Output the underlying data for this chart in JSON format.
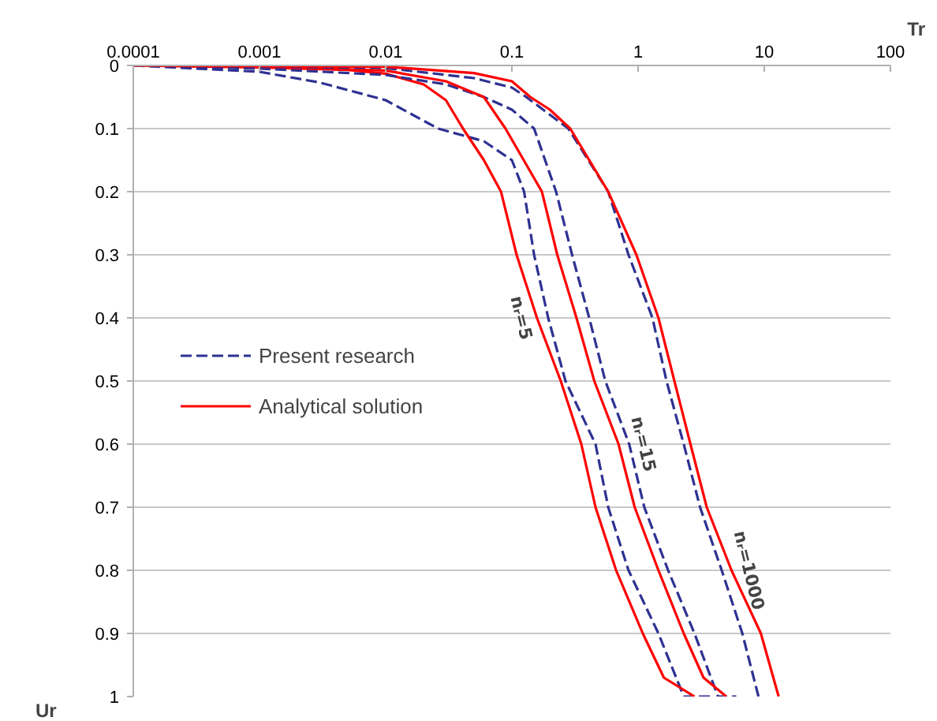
{
  "chart_data": {
    "type": "line",
    "xlabel": "Tr",
    "ylabel": "Ur",
    "log": "x",
    "xlim": [
      0.0001,
      100
    ],
    "xticks": [
      0.0001,
      0.001,
      0.01,
      0.1,
      1,
      10,
      100
    ],
    "ylim": [
      1,
      0
    ],
    "yticks": [
      0,
      0.1,
      0.2,
      0.3,
      0.4,
      0.5,
      0.6,
      0.7,
      0.8,
      0.9,
      1
    ],
    "grid": "y",
    "legend": "center left",
    "marker": "none",
    "series": [
      {
        "name": "Present research",
        "color": "#2e3192",
        "line_style": "dashed",
        "x": [
          0.0001,
          0.001,
          0.003,
          0.01,
          0.026,
          0.06,
          0.1,
          0.125,
          0.15,
          0.194,
          0.266,
          0.46,
          0.58,
          0.84,
          1.45,
          2.3,
          4.0
        ],
        "values": [
          0,
          0.01,
          0.027,
          0.055,
          0.1,
          0.12,
          0.15,
          0.2,
          0.3,
          0.4,
          0.5,
          0.6,
          0.7,
          0.8,
          0.9,
          1,
          1
        ]
      },
      {
        "name": "Analytical solution",
        "color": "#ff0000",
        "line_style": "solid",
        "x": [
          0.0001,
          0.001,
          0.005,
          0.01,
          0.02,
          0.03,
          0.041,
          0.06,
          0.082,
          0.109,
          0.158,
          0.244,
          0.355,
          0.46,
          0.67,
          1.09,
          1.6,
          2.8
        ],
        "values": [
          0,
          0.003,
          0.007,
          0.013,
          0.03,
          0.055,
          0.1,
          0.15,
          0.2,
          0.3,
          0.4,
          0.5,
          0.6,
          0.7,
          0.8,
          0.9,
          0.97,
          1
        ]
      },
      {
        "color": "#2e3192",
        "line_style": "dashed",
        "x": [
          0.0001,
          0.001,
          0.01,
          0.03,
          0.06,
          0.1,
          0.15,
          0.224,
          0.3,
          0.41,
          0.55,
          0.85,
          1.12,
          1.73,
          2.8,
          4.3,
          6.0
        ],
        "values": [
          0,
          0.005,
          0.015,
          0.03,
          0.05,
          0.07,
          0.1,
          0.2,
          0.3,
          0.4,
          0.5,
          0.6,
          0.7,
          0.8,
          0.9,
          1,
          1
        ]
      },
      {
        "color": "#ff0000",
        "line_style": "solid",
        "x": [
          0.0001,
          0.001,
          0.01,
          0.03,
          0.06,
          0.089,
          0.173,
          0.229,
          0.325,
          0.45,
          0.7,
          0.94,
          1.45,
          2.3,
          3.3,
          5.0
        ],
        "values": [
          0,
          0.002,
          0.008,
          0.025,
          0.05,
          0.1,
          0.2,
          0.3,
          0.4,
          0.5,
          0.6,
          0.7,
          0.8,
          0.9,
          0.97,
          1
        ]
      },
      {
        "color": "#2e3192",
        "line_style": "dashed",
        "x": [
          0.0001,
          0.01,
          0.05,
          0.1,
          0.13,
          0.28,
          0.58,
          0.84,
          1.3,
          1.68,
          2.3,
          3.1,
          4.6,
          6.7,
          9.0
        ],
        "values": [
          0,
          0.004,
          0.02,
          0.035,
          0.05,
          0.1,
          0.2,
          0.3,
          0.4,
          0.5,
          0.6,
          0.7,
          0.8,
          0.9,
          1
        ]
      },
      {
        "color": "#ff0000",
        "line_style": "solid",
        "x": [
          0.0001,
          0.01,
          0.05,
          0.1,
          0.14,
          0.2,
          0.29,
          0.58,
          0.97,
          1.45,
          1.94,
          2.6,
          3.5,
          5.5,
          9.4,
          13
        ],
        "values": [
          0,
          0.002,
          0.012,
          0.025,
          0.05,
          0.07,
          0.1,
          0.2,
          0.3,
          0.4,
          0.5,
          0.6,
          0.7,
          0.8,
          0.9,
          1
        ]
      }
    ],
    "annotations": [
      {
        "text": "nᵣ=5",
        "x": 0.158,
        "y": 0.4
      },
      {
        "text": "nᵣ=15",
        "x": 0.85,
        "y": 0.6
      },
      {
        "text": "nᵣ=1000",
        "x": 5.5,
        "y": 0.8
      }
    ]
  }
}
